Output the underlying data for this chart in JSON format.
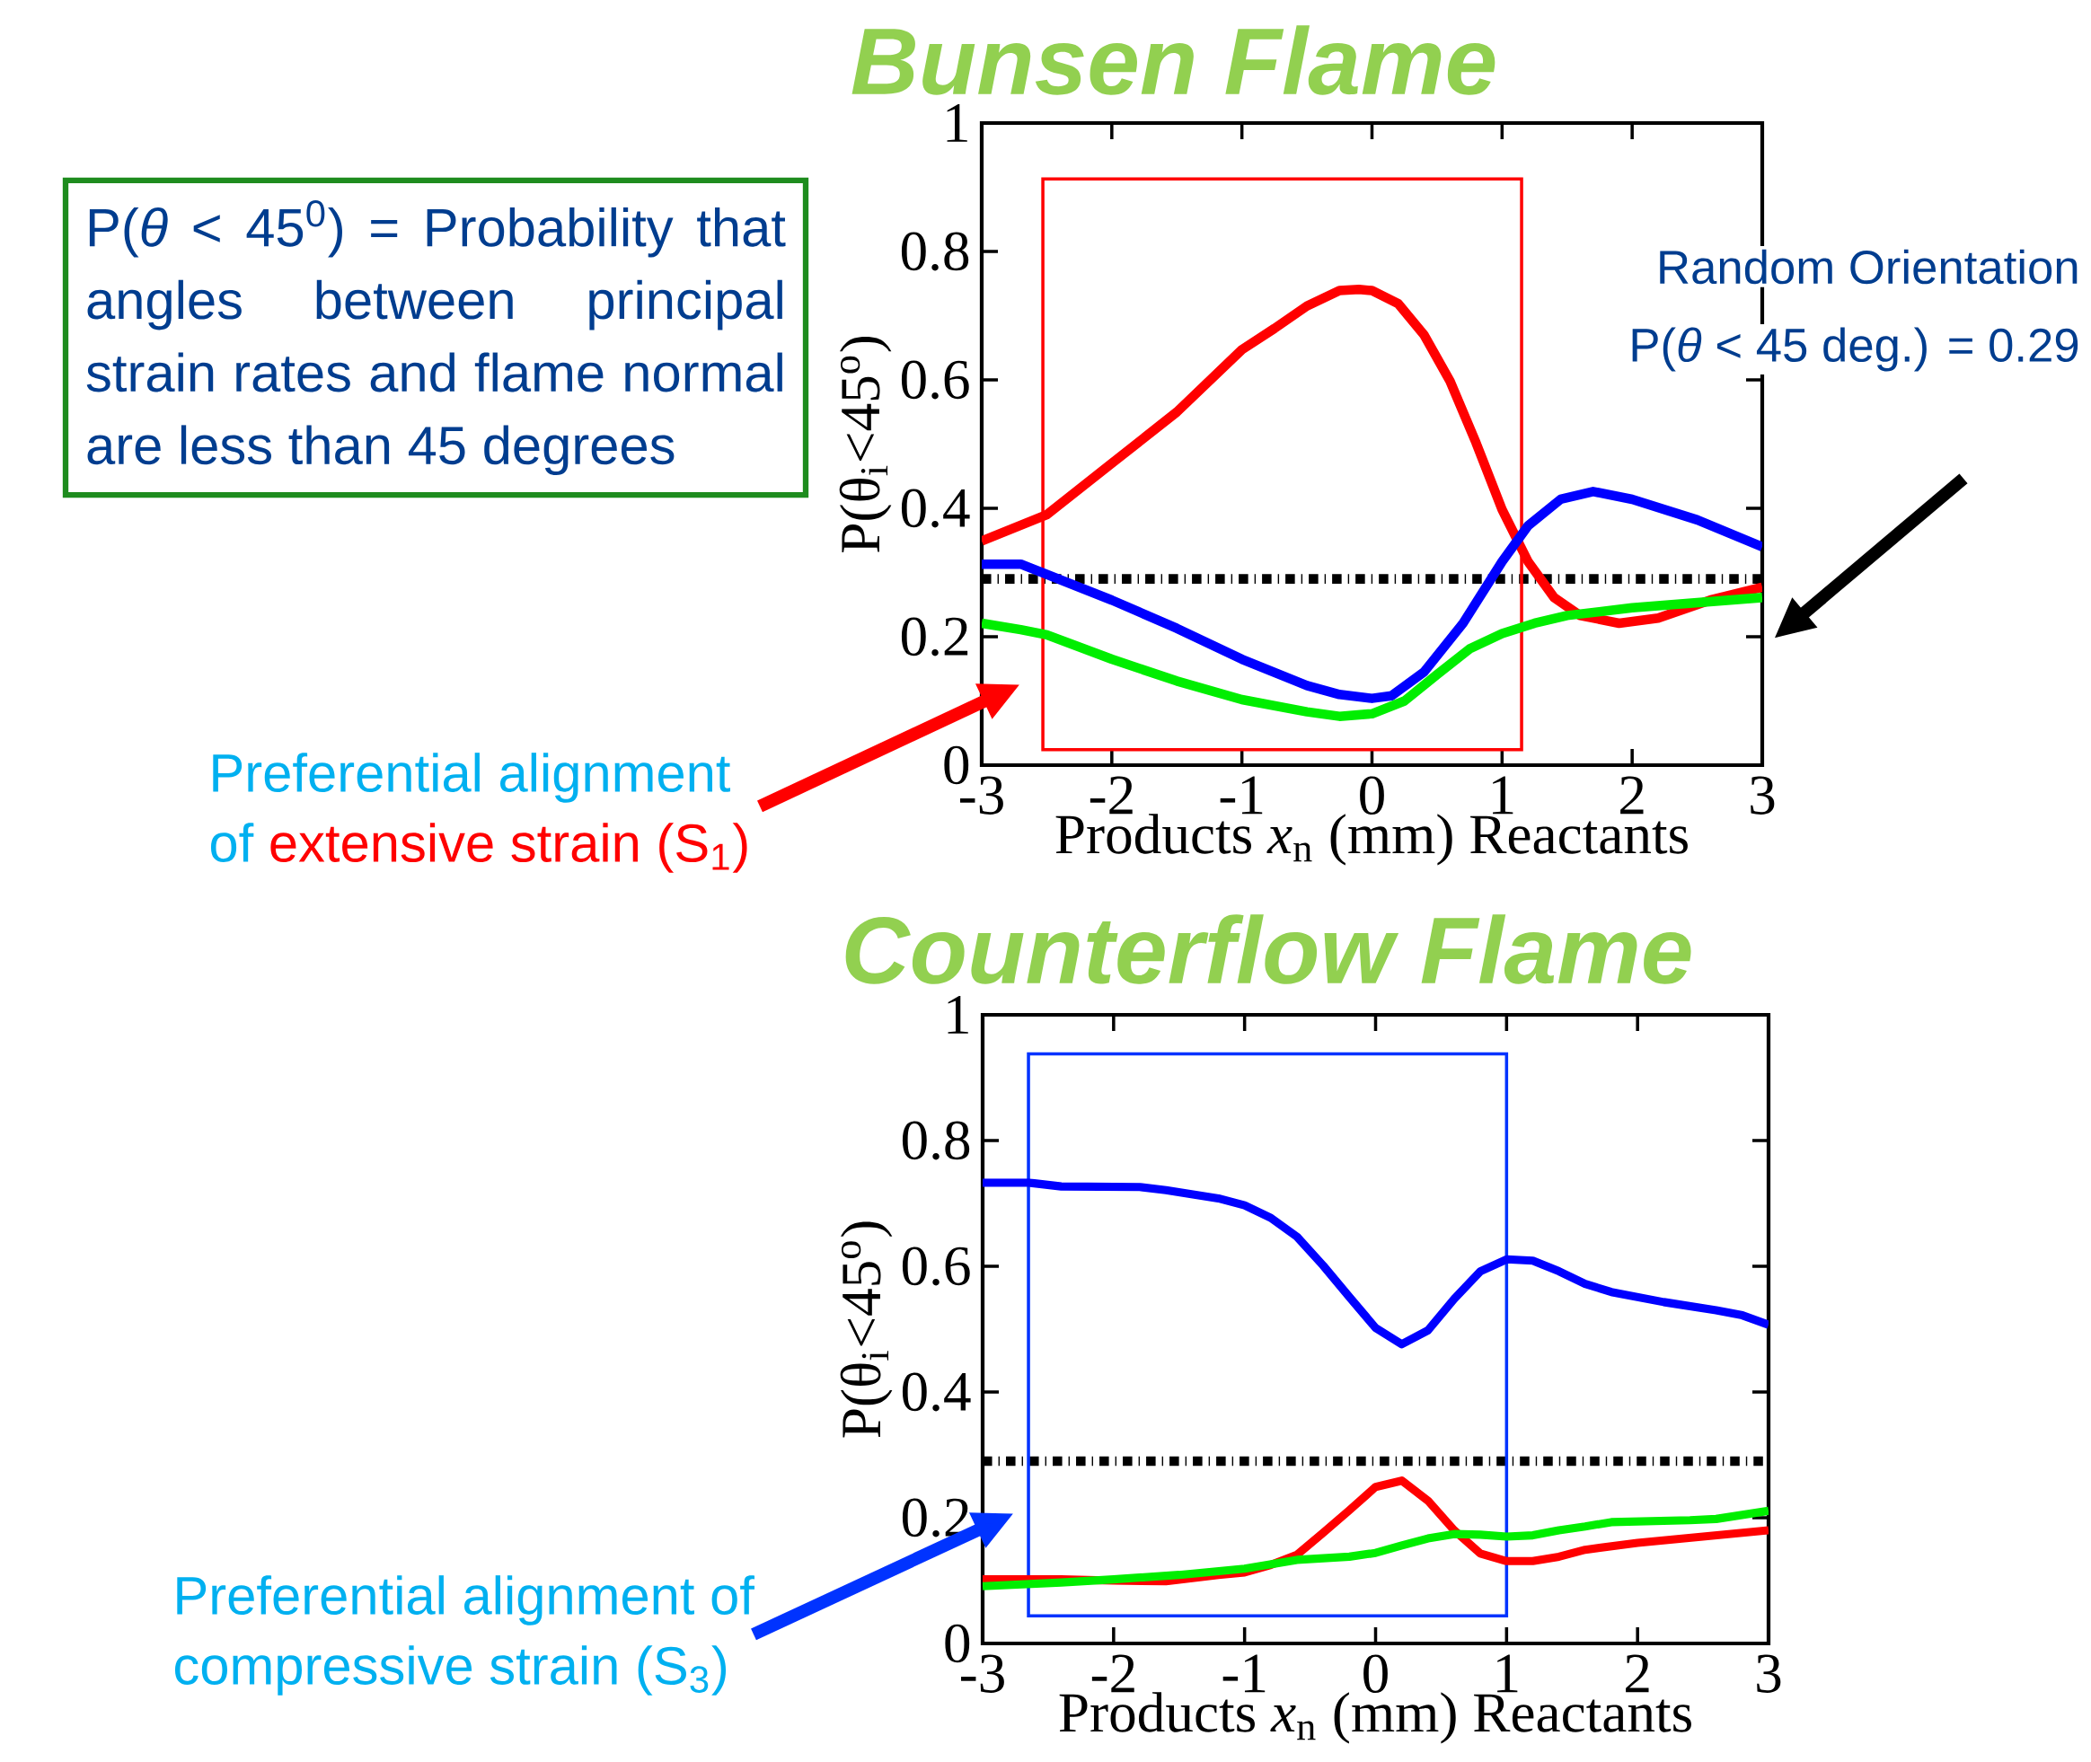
{
  "chart_data": [
    {
      "type": "line",
      "title": "Bunsen Flame",
      "xlabel": "Products    *x*$_{n}$ (mm)    Reactants",
      "ylabel": "P(θ$_{i}$<45$^{o}$)",
      "xlim": [
        -3,
        3
      ],
      "ylim": [
        0,
        1
      ],
      "xticks": [
        -3,
        -2,
        -1,
        0,
        1,
        2,
        3
      ],
      "yticks": [
        0,
        0.2,
        0.4,
        0.6,
        0.8,
        1
      ],
      "series": [
        {
          "color": "#ff0000",
          "x": [
            -3,
            -2.5,
            -2,
            -1.5,
            -1,
            -0.75,
            -0.5,
            -0.25,
            -0.1,
            0,
            0.2,
            0.4,
            0.6,
            0.8,
            1.0,
            1.2,
            1.4,
            1.6,
            1.9,
            2.2,
            2.6,
            3
          ],
          "values": [
            0.349,
            0.39,
            0.47,
            0.55,
            0.647,
            0.68,
            0.715,
            0.739,
            0.741,
            0.739,
            0.719,
            0.67,
            0.598,
            0.502,
            0.398,
            0.317,
            0.261,
            0.233,
            0.221,
            0.229,
            0.257,
            0.277
          ]
        },
        {
          "color": "#0000ff",
          "x": [
            -3,
            -2.7,
            -2.5,
            -2,
            -1.5,
            -1,
            -0.5,
            -0.25,
            0,
            0.15,
            0.4,
            0.7,
            1.0,
            1.2,
            1.45,
            1.7,
            2,
            2.5,
            3
          ],
          "values": [
            0.313,
            0.313,
            0.297,
            0.257,
            0.213,
            0.165,
            0.124,
            0.11,
            0.104,
            0.108,
            0.145,
            0.221,
            0.317,
            0.373,
            0.414,
            0.426,
            0.414,
            0.382,
            0.34
          ]
        },
        {
          "color": "#00ee00",
          "x": [
            -3,
            -2.7,
            -2.5,
            -2,
            -1.5,
            -1,
            -0.5,
            -0.25,
            0,
            0.25,
            0.5,
            0.75,
            1,
            1.25,
            1.5,
            2,
            2.5,
            3
          ],
          "values": [
            0.221,
            0.211,
            0.203,
            0.165,
            0.131,
            0.102,
            0.083,
            0.076,
            0.08,
            0.1,
            0.141,
            0.181,
            0.205,
            0.221,
            0.233,
            0.245,
            0.253,
            0.261
          ]
        }
      ],
      "ref_lines": [
        {
          "axis": "y",
          "value": 0.29,
          "color": "#000000",
          "line_style": "dashdot"
        }
      ],
      "annotations": [
        "P(*θ* < 45$^{0}$)  = Probability that angles between principal strain rates and flame normal are less than 45 degrees",
        "Random Orientation",
        "P(*θ* < 45 deg.) = 0.29",
        "Preferential alignment",
        "of",
        "extensive strain (S$_{1}$)"
      ]
    },
    {
      "type": "line",
      "title": "Counterflow Flame",
      "xlabel": "Products    *x*$_{n}$ (mm)    Reactants",
      "ylabel": "P(θ$_{i}$<45$^{o}$)",
      "xlim": [
        -3,
        3
      ],
      "ylim": [
        0,
        1
      ],
      "xticks": [
        -3,
        -2,
        -1,
        0,
        1,
        2,
        3
      ],
      "yticks": [
        0,
        0.2,
        0.4,
        0.6,
        0.8,
        1
      ],
      "series": [
        {
          "color": "#0000ff",
          "x": [
            -3,
            -2.65,
            -2.4,
            -1.8,
            -1.6,
            -1.2,
            -1.0,
            -0.8,
            -0.6,
            -0.4,
            -0.2,
            0,
            0.2,
            0.4,
            0.6,
            0.8,
            1.0,
            1.2,
            1.4,
            1.6,
            1.8,
            2.2,
            2.6,
            2.8,
            3
          ],
          "values": [
            0.733,
            0.733,
            0.727,
            0.726,
            0.721,
            0.708,
            0.697,
            0.677,
            0.647,
            0.601,
            0.551,
            0.502,
            0.476,
            0.498,
            0.548,
            0.592,
            0.611,
            0.609,
            0.592,
            0.572,
            0.559,
            0.543,
            0.53,
            0.522,
            0.507
          ]
        },
        {
          "color": "#ff0000",
          "x": [
            -3,
            -2.4,
            -2,
            -1.6,
            -1.2,
            -1,
            -0.8,
            -0.6,
            -0.4,
            -0.2,
            0,
            0.2,
            0.4,
            0.6,
            0.8,
            1.0,
            1.2,
            1.4,
            1.6,
            2,
            2.5,
            3
          ],
          "values": [
            0.102,
            0.102,
            0.1,
            0.099,
            0.109,
            0.113,
            0.125,
            0.141,
            0.176,
            0.212,
            0.249,
            0.259,
            0.227,
            0.18,
            0.143,
            0.131,
            0.131,
            0.138,
            0.149,
            0.16,
            0.17,
            0.18
          ]
        },
        {
          "color": "#00ee00",
          "x": [
            -3,
            -2.4,
            -2,
            -1.5,
            -1,
            -0.6,
            -0.2,
            0,
            0.2,
            0.4,
            0.6,
            0.8,
            1.0,
            1.2,
            1.4,
            1.6,
            1.8,
            2.4,
            2.6,
            3
          ],
          "values": [
            0.091,
            0.097,
            0.102,
            0.109,
            0.119,
            0.133,
            0.138,
            0.144,
            0.156,
            0.167,
            0.174,
            0.173,
            0.17,
            0.172,
            0.18,
            0.186,
            0.193,
            0.196,
            0.198,
            0.211
          ]
        }
      ],
      "ref_lines": [
        {
          "axis": "y",
          "value": 0.29,
          "color": "#000000",
          "line_style": "dashdot"
        }
      ],
      "annotations": [
        "Preferential alignment of",
        "compressive strain (S$_{3}$)"
      ]
    }
  ]
}
